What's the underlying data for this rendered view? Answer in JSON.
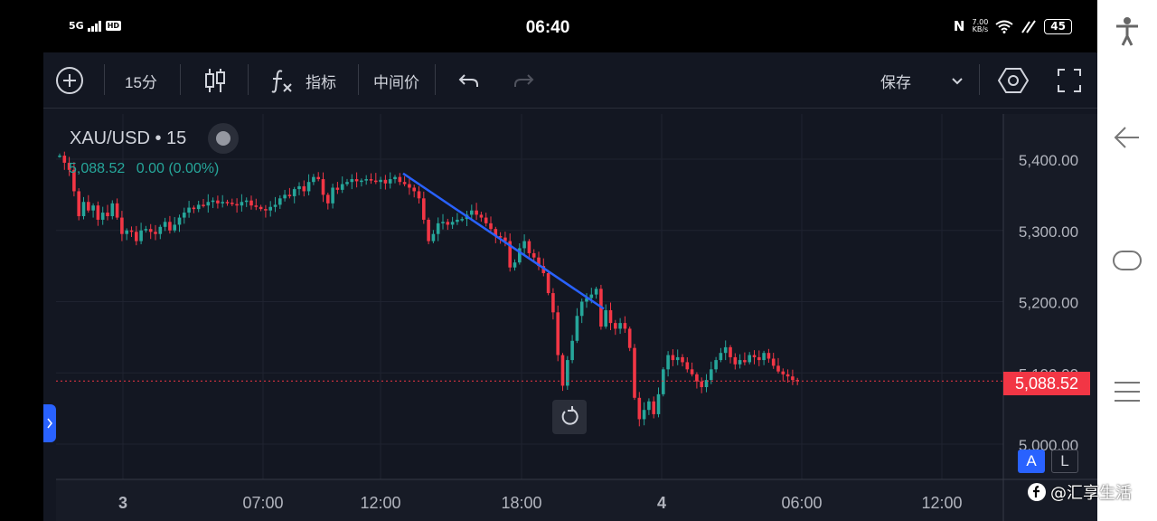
{
  "status_bar": {
    "network": "5G",
    "hd": "HD",
    "time": "06:40",
    "speed_value": "7.00",
    "speed_unit": "KB/s",
    "battery": "45"
  },
  "toolbar": {
    "interval": "15分",
    "indicators_label": "指标",
    "price_type": "中间价",
    "save_label": "保存"
  },
  "symbol": {
    "name": "XAU/USD",
    "separator": "•",
    "interval": "15",
    "price": "5,088.52",
    "change": "0.00 (0.00%)"
  },
  "colors": {
    "up": "#26a69a",
    "down": "#f23645",
    "trendline": "#2962ff",
    "accent": "#2962ff"
  },
  "scale_buttons": {
    "auto": "A",
    "log": "L"
  },
  "watermark": "@汇享生活",
  "chart_data": {
    "type": "candlestick",
    "symbol": "XAU/USD",
    "interval": "15",
    "last_price": 5088.52,
    "y_ticks": [
      "5,400.00",
      "5,300.00",
      "5,200.00",
      "5,100.00",
      "5,000.00"
    ],
    "y_tick_values": [
      5400,
      5300,
      5200,
      5100,
      5000
    ],
    "x_ticks": [
      {
        "label": "3",
        "bold": true
      },
      {
        "label": "07:00",
        "bold": false
      },
      {
        "label": "12:00",
        "bold": false
      },
      {
        "label": "18:00",
        "bold": false
      },
      {
        "label": "4",
        "bold": true
      },
      {
        "label": "06:00",
        "bold": false
      },
      {
        "label": "12:00",
        "bold": false
      }
    ],
    "trendline": {
      "from_price": 5380,
      "to_price": 5190
    },
    "closes": [
      5405,
      5395,
      5385,
      5355,
      5320,
      5340,
      5328,
      5335,
      5315,
      5325,
      5320,
      5338,
      5318,
      5295,
      5300,
      5298,
      5285,
      5300,
      5302,
      5298,
      5295,
      5305,
      5312,
      5300,
      5308,
      5318,
      5325,
      5332,
      5330,
      5336,
      5335,
      5340,
      5342,
      5338,
      5340,
      5339,
      5337,
      5335,
      5340,
      5342,
      5335,
      5333,
      5330,
      5328,
      5333,
      5336,
      5345,
      5350,
      5348,
      5358,
      5362,
      5355,
      5368,
      5375,
      5372,
      5350,
      5338,
      5360,
      5357,
      5365,
      5368,
      5372,
      5369,
      5370,
      5372,
      5370,
      5368,
      5371,
      5366,
      5372,
      5375,
      5368,
      5365,
      5360,
      5355,
      5345,
      5315,
      5285,
      5295,
      5310,
      5312,
      5308,
      5312,
      5315,
      5316,
      5322,
      5328,
      5322,
      5318,
      5310,
      5302,
      5292,
      5290,
      5285,
      5248,
      5255,
      5275,
      5285,
      5268,
      5262,
      5250,
      5240,
      5212,
      5185,
      5125,
      5082,
      5118,
      5145,
      5180,
      5200,
      5205,
      5210,
      5218,
      5165,
      5188,
      5170,
      5162,
      5170,
      5162,
      5135,
      5065,
      5035,
      5048,
      5060,
      5042,
      5070,
      5105,
      5125,
      5118,
      5122,
      5115,
      5105,
      5098,
      5088,
      5080,
      5090,
      5105,
      5118,
      5128,
      5136,
      5122,
      5112,
      5118,
      5115,
      5125,
      5122,
      5118,
      5128,
      5120,
      5110,
      5102,
      5098,
      5095,
      5090,
      5088.52
    ]
  }
}
